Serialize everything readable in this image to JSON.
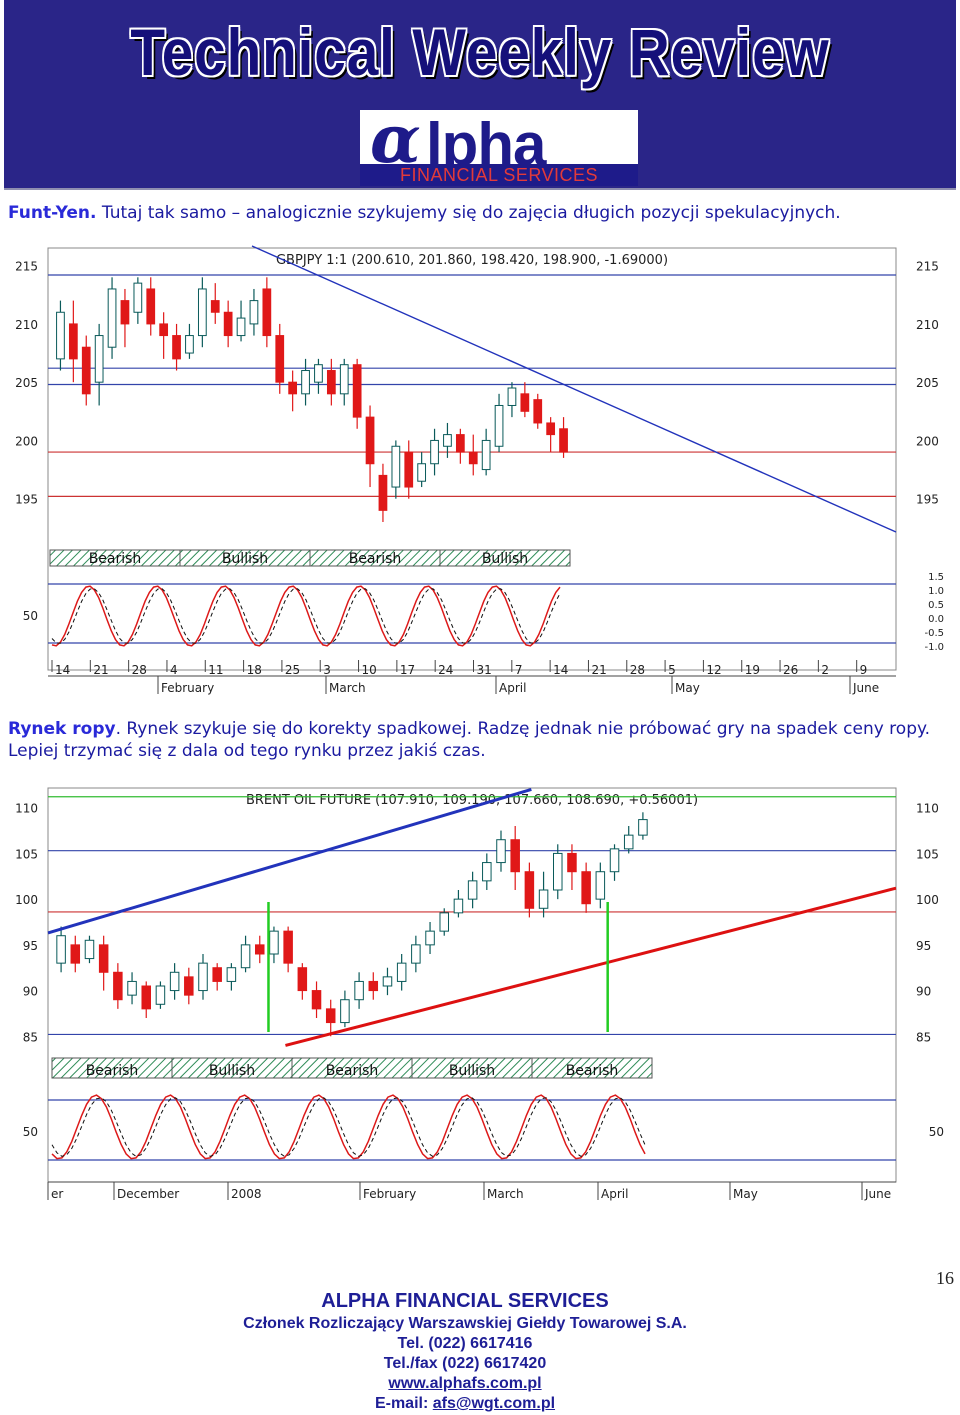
{
  "header": {
    "title": "Technical Weekly Review",
    "logo": {
      "mark": "α",
      "word": "lpha",
      "subtitle": "FINANCIAL SERVICES"
    }
  },
  "sections": [
    {
      "lead": "Funt-Yen.",
      "text": " Tutaj tak samo – analogicznie szykujemy się do zajęcia długich pozycji spekulacyjnych."
    },
    {
      "lead": "Rynek ropy",
      "text": ". Rynek szykuje się do korekty spadkowej. Radzę jednak nie próbować gry na spadek ceny ropy. Lepiej trzymać się z dala od tego rynku przez jakiś czas."
    }
  ],
  "colors": {
    "header_bg": "#2a2588",
    "text_blue": "#1a1aa0",
    "candle_up": "#0a5a5a",
    "candle_down": "#e01818",
    "trend_blue": "#2233bb",
    "trend_red": "#dd1111",
    "signal_green": "#22cc22"
  },
  "chart_data": [
    {
      "type": "candlestick",
      "title": "GBPJPY 1:1 (200.610, 201.860, 198.420, 198.900, -1.69000)",
      "y_ticks": [
        "215",
        "210",
        "205",
        "200",
        "195"
      ],
      "ylim": [
        193,
        216
      ],
      "hlines_blue": [
        214.2,
        206.2,
        204.8
      ],
      "hlines_red": [
        199.0,
        195.2
      ],
      "trendline": {
        "x": [
          0.25,
          0.33
        ],
        "y": [
          215.5,
          193.5
        ]
      },
      "sentiment_bands": [
        "Bearish",
        "Bullish",
        "Bearish",
        "Bullish"
      ],
      "oscillator_labels": [
        "50"
      ],
      "oscillator_scale": [
        "1.5",
        "1.0",
        "0.5",
        "0.0",
        "-0.5",
        "-1.0"
      ],
      "x_day_ticks": [
        "14",
        "21",
        "28",
        "4",
        "11",
        "18",
        "25",
        "3",
        "10",
        "17",
        "24",
        "31",
        "7",
        "14",
        "21",
        "28",
        "5",
        "12",
        "19",
        "26",
        "2",
        "9"
      ],
      "x_month_ticks": [
        "February",
        "March",
        "April",
        "May",
        "June"
      ],
      "series": [
        {
          "o": 207,
          "c": 211,
          "h": 212,
          "l": 206
        },
        {
          "o": 210,
          "c": 207,
          "h": 212,
          "l": 205
        },
        {
          "o": 208,
          "c": 204,
          "h": 209,
          "l": 203
        },
        {
          "o": 205,
          "c": 209,
          "h": 210,
          "l": 203
        },
        {
          "o": 208,
          "c": 213,
          "h": 214,
          "l": 207
        },
        {
          "o": 212,
          "c": 210,
          "h": 213,
          "l": 208
        },
        {
          "o": 211,
          "c": 213.5,
          "h": 214,
          "l": 210
        },
        {
          "o": 213,
          "c": 210,
          "h": 214,
          "l": 209
        },
        {
          "o": 210,
          "c": 209,
          "h": 211,
          "l": 207
        },
        {
          "o": 209,
          "c": 207,
          "h": 210,
          "l": 206
        },
        {
          "o": 207.5,
          "c": 209,
          "h": 210,
          "l": 207
        },
        {
          "o": 209,
          "c": 213,
          "h": 214,
          "l": 208
        },
        {
          "o": 212,
          "c": 211,
          "h": 213.5,
          "l": 210
        },
        {
          "o": 211,
          "c": 209,
          "h": 212,
          "l": 208
        },
        {
          "o": 209,
          "c": 210.5,
          "h": 212,
          "l": 208.5
        },
        {
          "o": 210,
          "c": 212,
          "h": 213,
          "l": 209
        },
        {
          "o": 213,
          "c": 209,
          "h": 214,
          "l": 208
        },
        {
          "o": 209,
          "c": 205,
          "h": 210,
          "l": 204
        },
        {
          "o": 205,
          "c": 204,
          "h": 206,
          "l": 202.5
        },
        {
          "o": 204,
          "c": 206,
          "h": 207,
          "l": 203
        },
        {
          "o": 205,
          "c": 206.5,
          "h": 207,
          "l": 204
        },
        {
          "o": 206,
          "c": 204,
          "h": 207,
          "l": 203
        },
        {
          "o": 204,
          "c": 206.5,
          "h": 207,
          "l": 203
        },
        {
          "o": 206.5,
          "c": 202,
          "h": 207,
          "l": 201
        },
        {
          "o": 202,
          "c": 198,
          "h": 203,
          "l": 196
        },
        {
          "o": 197,
          "c": 194,
          "h": 198,
          "l": 193
        },
        {
          "o": 196,
          "c": 199.5,
          "h": 200,
          "l": 195
        },
        {
          "o": 199,
          "c": 196,
          "h": 200,
          "l": 195
        },
        {
          "o": 196.5,
          "c": 198,
          "h": 199,
          "l": 196
        },
        {
          "o": 198,
          "c": 200,
          "h": 201,
          "l": 197
        },
        {
          "o": 199.5,
          "c": 200.5,
          "h": 201.5,
          "l": 198.5
        },
        {
          "o": 200.5,
          "c": 199,
          "h": 201,
          "l": 198
        },
        {
          "o": 199,
          "c": 198,
          "h": 200.5,
          "l": 197
        },
        {
          "o": 197.5,
          "c": 200,
          "h": 201,
          "l": 197
        },
        {
          "o": 199.5,
          "c": 203,
          "h": 204,
          "l": 199
        },
        {
          "o": 203,
          "c": 204.5,
          "h": 205,
          "l": 202
        },
        {
          "o": 204,
          "c": 202.5,
          "h": 205,
          "l": 202
        },
        {
          "o": 203.5,
          "c": 201.5,
          "h": 204,
          "l": 201
        },
        {
          "o": 201.5,
          "c": 200.5,
          "h": 202,
          "l": 199
        },
        {
          "o": 201,
          "c": 199,
          "h": 202,
          "l": 198.5
        }
      ]
    },
    {
      "type": "candlestick",
      "title": "BRENT OIL FUTURE (107.910, 109.190, 107.660, 108.690, +0.56001)",
      "y_ticks": [
        "110",
        "105",
        "100",
        "95",
        "90",
        "85"
      ],
      "ylim": [
        83.5,
        111.5
      ],
      "hlines_blue": [
        105.3,
        85.2
      ],
      "hlines_red": [
        98.6
      ],
      "hlines_green": [
        111.2
      ],
      "trendline_blue": {
        "from": [
          0.0,
          96.3
        ],
        "to": [
          0.57,
          112.0
        ]
      },
      "trendline_red": {
        "from": [
          0.28,
          84.0
        ],
        "to": [
          1.0,
          101.2
        ]
      },
      "signal_lines": [
        0.26,
        0.66
      ],
      "sentiment_bands": [
        "Bearish",
        "Bullish",
        "Bearish",
        "Bullish",
        "Bearish"
      ],
      "oscillator_labels": [
        "50"
      ],
      "x_month_ticks": [
        "er",
        "December",
        "2008",
        "February",
        "March",
        "April",
        "May",
        "June"
      ],
      "series": [
        {
          "o": 93,
          "c": 96,
          "h": 97,
          "l": 92
        },
        {
          "o": 95,
          "c": 93,
          "h": 96,
          "l": 92
        },
        {
          "o": 93.5,
          "c": 95.5,
          "h": 96,
          "l": 93
        },
        {
          "o": 95,
          "c": 92,
          "h": 96,
          "l": 90
        },
        {
          "o": 92,
          "c": 89,
          "h": 93,
          "l": 88
        },
        {
          "o": 89.5,
          "c": 91,
          "h": 92,
          "l": 88.5
        },
        {
          "o": 90.5,
          "c": 88,
          "h": 91,
          "l": 87
        },
        {
          "o": 88.5,
          "c": 90.5,
          "h": 91,
          "l": 88
        },
        {
          "o": 90,
          "c": 92,
          "h": 93,
          "l": 89
        },
        {
          "o": 91.5,
          "c": 89.5,
          "h": 92.5,
          "l": 88.5
        },
        {
          "o": 90,
          "c": 93,
          "h": 94,
          "l": 89
        },
        {
          "o": 92.5,
          "c": 91,
          "h": 93,
          "l": 90
        },
        {
          "o": 91,
          "c": 92.5,
          "h": 93,
          "l": 90
        },
        {
          "o": 92.5,
          "c": 95,
          "h": 96,
          "l": 92
        },
        {
          "o": 95,
          "c": 94,
          "h": 96,
          "l": 93
        },
        {
          "o": 94,
          "c": 96.5,
          "h": 97,
          "l": 93
        },
        {
          "o": 96.5,
          "c": 93,
          "h": 97,
          "l": 92
        },
        {
          "o": 92.5,
          "c": 90,
          "h": 93,
          "l": 89
        },
        {
          "o": 90,
          "c": 88,
          "h": 91,
          "l": 87
        },
        {
          "o": 88,
          "c": 86.5,
          "h": 89,
          "l": 85
        },
        {
          "o": 86.5,
          "c": 89,
          "h": 90,
          "l": 86
        },
        {
          "o": 89,
          "c": 91,
          "h": 92,
          "l": 88
        },
        {
          "o": 91,
          "c": 90,
          "h": 92,
          "l": 89
        },
        {
          "o": 90.5,
          "c": 91.5,
          "h": 92.5,
          "l": 89.5
        },
        {
          "o": 91,
          "c": 93,
          "h": 94,
          "l": 90
        },
        {
          "o": 93,
          "c": 95,
          "h": 96,
          "l": 92
        },
        {
          "o": 95,
          "c": 96.5,
          "h": 97.5,
          "l": 94
        },
        {
          "o": 96.5,
          "c": 98.5,
          "h": 99,
          "l": 96
        },
        {
          "o": 98.5,
          "c": 100,
          "h": 101,
          "l": 98
        },
        {
          "o": 100,
          "c": 102,
          "h": 103,
          "l": 99
        },
        {
          "o": 102,
          "c": 104,
          "h": 105,
          "l": 101
        },
        {
          "o": 104,
          "c": 106.5,
          "h": 107.5,
          "l": 103
        },
        {
          "o": 106.5,
          "c": 103,
          "h": 108,
          "l": 101
        },
        {
          "o": 103,
          "c": 99,
          "h": 104,
          "l": 98
        },
        {
          "o": 99,
          "c": 101,
          "h": 103,
          "l": 98
        },
        {
          "o": 101,
          "c": 105,
          "h": 106,
          "l": 100
        },
        {
          "o": 105,
          "c": 103,
          "h": 106,
          "l": 101
        },
        {
          "o": 103,
          "c": 99.5,
          "h": 104,
          "l": 98.5
        },
        {
          "o": 100,
          "c": 103,
          "h": 104,
          "l": 99
        },
        {
          "o": 103,
          "c": 105.5,
          "h": 106,
          "l": 102
        },
        {
          "o": 105.5,
          "c": 107,
          "h": 108,
          "l": 105
        },
        {
          "o": 107,
          "c": 108.7,
          "h": 109.5,
          "l": 106.5
        }
      ]
    }
  ],
  "page_number": "16",
  "footer": {
    "company": "ALPHA FINANCIAL SERVICES",
    "member": "Członek Rozliczający Warszawskiej Giełdy Towarowej S.A.",
    "tel": "Tel. (022) 6617416",
    "fax": "Tel./fax (022) 6617420",
    "website": "www.alphafs.com.pl",
    "email_label": "E-mail: ",
    "email": "afs@wgt.com.pl"
  }
}
